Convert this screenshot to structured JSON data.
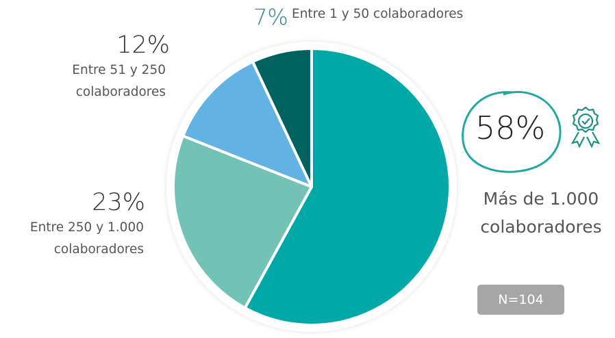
{
  "chart_data": {
    "type": "pie",
    "categories": [
      "Más de 1.000 colaboradores",
      "Entre 250 y 1.000 colaboradores",
      "Entre 51 y 250 colaboradores",
      "Entre 1 y 50 colaboradores"
    ],
    "values": [
      58,
      23,
      12,
      7
    ],
    "value_labels": [
      "58%",
      "23%",
      "12%",
      "7%"
    ],
    "colors": [
      "#00a9a8",
      "#72c2b5",
      "#62b3e4",
      "#00625f"
    ],
    "note": "N=104"
  }
}
